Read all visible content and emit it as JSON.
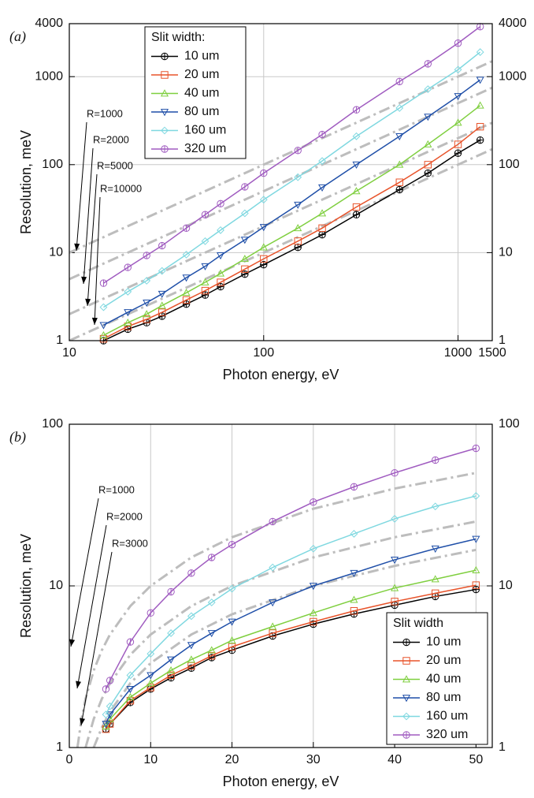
{
  "chart_data": [
    {
      "type": "line",
      "panel_label": "(a)",
      "x_label": "Photon energy, eV",
      "y_label": "Resolution, meV",
      "xscale": "log",
      "yscale": "log",
      "xlim": [
        10,
        1500
      ],
      "ylim": [
        1,
        4000
      ],
      "xticks": [
        10,
        100,
        1000,
        1500
      ],
      "yticks": [
        1,
        10,
        100,
        1000,
        4000
      ],
      "grid": true,
      "legend": {
        "title": "Slit width:",
        "position": "upper left"
      },
      "x": [
        15,
        20,
        25,
        30,
        40,
        50,
        60,
        80,
        100,
        150,
        200,
        300,
        500,
        700,
        1000,
        1300
      ],
      "series": [
        {
          "name": "10 um",
          "color": "#000000",
          "marker": "circleplus",
          "values": [
            1.0,
            1.35,
            1.6,
            1.9,
            2.6,
            3.3,
            4.1,
            5.7,
            7.3,
            11.5,
            16,
            27,
            52,
            80,
            135,
            190
          ]
        },
        {
          "name": "20 um",
          "color": "#e8532a",
          "marker": "square",
          "values": [
            1.05,
            1.45,
            1.75,
            2.1,
            2.9,
            3.7,
            4.6,
            6.5,
            8.5,
            13.5,
            19,
            33,
            63,
            100,
            170,
            270
          ]
        },
        {
          "name": "40 um",
          "color": "#7fcf3f",
          "marker": "triup",
          "values": [
            1.15,
            1.6,
            2.0,
            2.5,
            3.5,
            4.6,
            5.8,
            8.5,
            11.5,
            19,
            28,
            50,
            100,
            170,
            300,
            470
          ]
        },
        {
          "name": "80 um",
          "color": "#1f4fa8",
          "marker": "tridown",
          "values": [
            1.5,
            2.1,
            2.7,
            3.4,
            5.2,
            7,
            9.3,
            14,
            19.5,
            35,
            55,
            100,
            210,
            350,
            600,
            920
          ]
        },
        {
          "name": "160 um",
          "color": "#7fd8e0",
          "marker": "diamond",
          "values": [
            2.4,
            3.6,
            4.8,
            6.2,
            9.5,
            13.5,
            18,
            28,
            40,
            72,
            110,
            210,
            440,
            720,
            1200,
            1900
          ]
        },
        {
          "name": "320 um",
          "color": "#a05cc0",
          "marker": "circlebar",
          "values": [
            4.5,
            6.8,
            9.3,
            12,
            19,
            27,
            36,
            56,
            80,
            145,
            220,
            420,
            880,
            1400,
            2400,
            3700
          ]
        }
      ],
      "reference_lines": [
        {
          "label": "R=1000",
          "x": [
            10,
            1500
          ],
          "values": [
            10,
            1500
          ]
        },
        {
          "label": "R=2000",
          "x": [
            10,
            1500
          ],
          "values": [
            5,
            750
          ]
        },
        {
          "label": "R=5000",
          "x": [
            10,
            1500
          ],
          "values": [
            2,
            300
          ]
        },
        {
          "label": "R=10000",
          "x": [
            10,
            1500
          ],
          "values": [
            1,
            150
          ]
        }
      ]
    },
    {
      "type": "line",
      "panel_label": "(b)",
      "x_label": "Photon energy, eV",
      "y_label": "Resolution, meV",
      "xscale": "linear",
      "yscale": "log",
      "xlim": [
        0,
        52
      ],
      "ylim": [
        1,
        100
      ],
      "xticks": [
        0,
        10,
        20,
        30,
        40,
        50
      ],
      "yticks": [
        1,
        10,
        100
      ],
      "grid": true,
      "legend": {
        "title": "Slit width",
        "position": "lower right"
      },
      "x": [
        4.5,
        5,
        7.5,
        10,
        12.5,
        15,
        17.5,
        20,
        25,
        30,
        35,
        40,
        45,
        50
      ],
      "series": [
        {
          "name": "10 um",
          "color": "#000000",
          "marker": "circleplus",
          "values": [
            1.3,
            1.4,
            1.9,
            2.3,
            2.7,
            3.1,
            3.6,
            4.0,
            4.9,
            5.8,
            6.7,
            7.6,
            8.6,
            9.5
          ]
        },
        {
          "name": "20 um",
          "color": "#e8532a",
          "marker": "square",
          "values": [
            1.3,
            1.4,
            1.95,
            2.35,
            2.8,
            3.2,
            3.7,
            4.2,
            5.1,
            6.0,
            7.0,
            8.0,
            9.0,
            10.1
          ]
        },
        {
          "name": "40 um",
          "color": "#7fcf3f",
          "marker": "triup",
          "values": [
            1.35,
            1.5,
            2.05,
            2.5,
            3.0,
            3.5,
            4.0,
            4.6,
            5.6,
            6.8,
            8.2,
            9.7,
            11.0,
            12.5
          ]
        },
        {
          "name": "80 um",
          "color": "#1f4fa8",
          "marker": "tridown",
          "values": [
            1.4,
            1.6,
            2.3,
            2.8,
            3.5,
            4.3,
            5.1,
            6.0,
            7.9,
            10,
            12,
            14.5,
            17,
            19.5
          ]
        },
        {
          "name": "160 um",
          "color": "#7fd8e0",
          "marker": "diamond",
          "values": [
            1.6,
            1.8,
            2.8,
            3.8,
            5.1,
            6.5,
            7.9,
            9.6,
            13,
            17,
            21,
            26,
            31,
            36
          ]
        },
        {
          "name": "320 um",
          "color": "#a05cc0",
          "marker": "circlebar",
          "values": [
            2.3,
            2.6,
            4.5,
            6.8,
            9.2,
            12,
            15,
            18,
            25,
            33,
            41,
            50,
            60,
            71
          ]
        }
      ],
      "reference_lines": [
        {
          "label": "R=1000",
          "x": [
            1,
            1.5,
            2,
            3,
            4,
            5,
            7.5,
            10,
            15,
            20,
            30,
            40,
            50
          ],
          "values": [
            1,
            1.5,
            2,
            3,
            4,
            5,
            7.5,
            10,
            15,
            20,
            30,
            40,
            50
          ]
        },
        {
          "label": "R=2000",
          "x": [
            2,
            3,
            4,
            5,
            7.5,
            10,
            15,
            20,
            30,
            40,
            50
          ],
          "values": [
            1,
            1.5,
            2,
            2.5,
            3.75,
            5,
            7.5,
            10,
            15,
            20,
            25
          ]
        },
        {
          "label": "R=3000",
          "x": [
            3,
            4,
            5,
            7.5,
            10,
            15,
            20,
            30,
            40,
            50
          ],
          "values": [
            1,
            1.33,
            1.67,
            2.5,
            3.33,
            5,
            6.67,
            10,
            13.3,
            16.7
          ]
        }
      ]
    }
  ]
}
